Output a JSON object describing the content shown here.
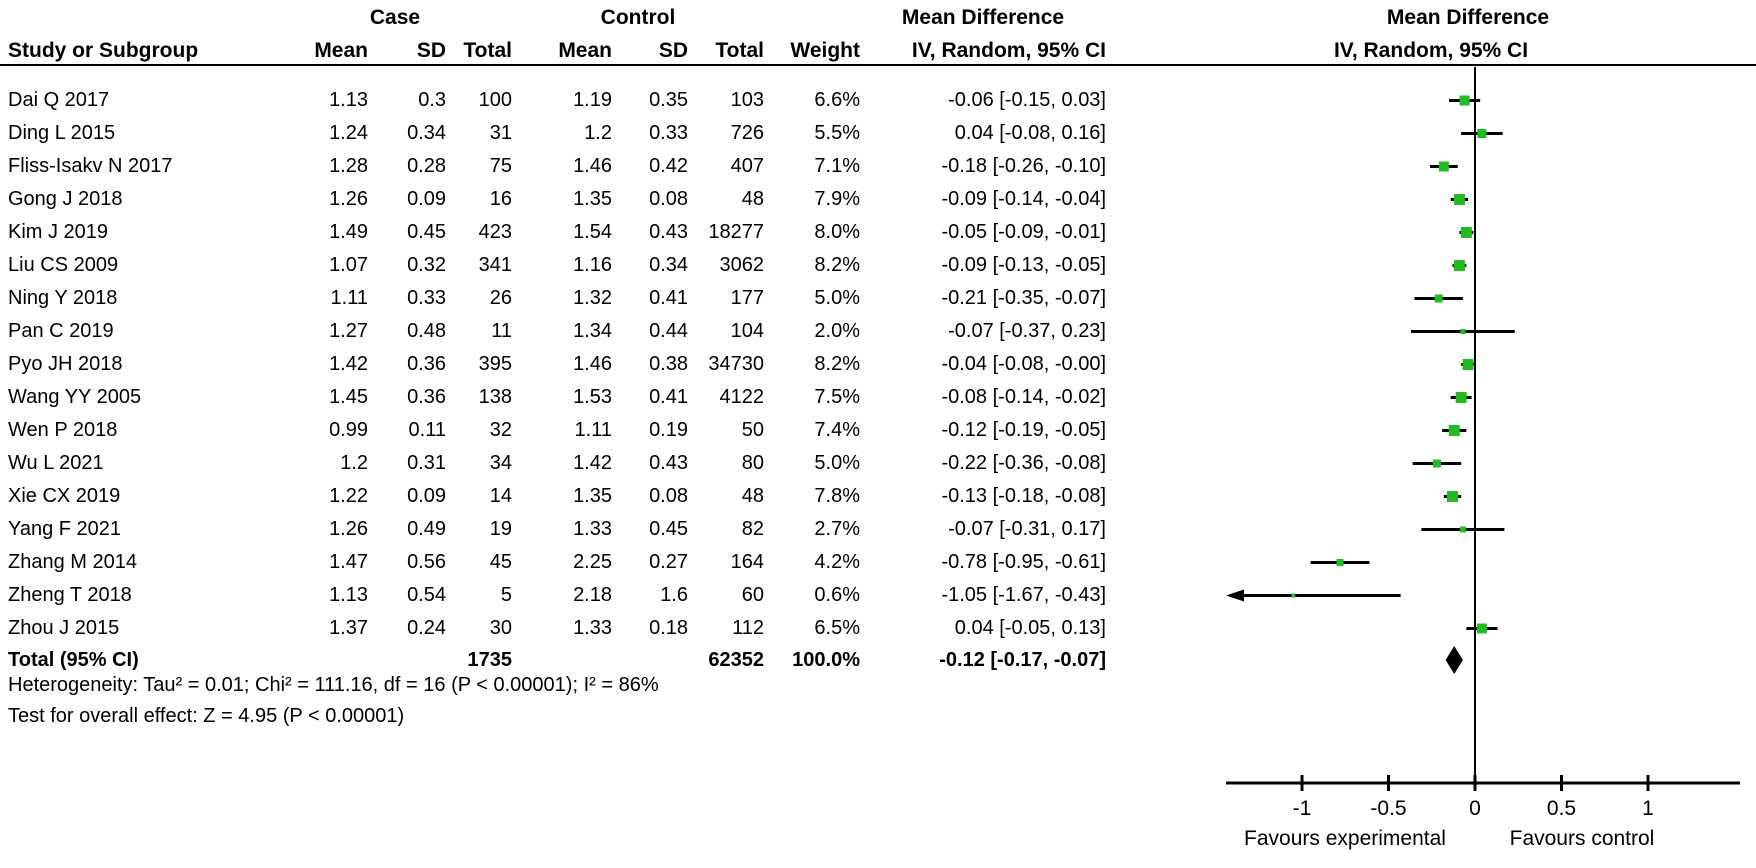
{
  "headers": {
    "group_case": "Case",
    "group_control": "Control",
    "group_md_text": "Mean Difference",
    "group_md_plot": "Mean Difference",
    "col_study": "Study or Subgroup",
    "col_mean": "Mean",
    "col_sd": "SD",
    "col_total": "Total",
    "col_weight": "Weight",
    "col_ci": "IV, Random, 95% CI"
  },
  "chart_data": {
    "type": "forest",
    "effect_measure": "Mean Difference",
    "model": "IV, Random, 95% CI",
    "studies": [
      {
        "name": "Dai Q 2017",
        "case_mean": "1.13",
        "case_sd": "0.3",
        "case_total": "100",
        "ctrl_mean": "1.19",
        "ctrl_sd": "0.35",
        "ctrl_total": "103",
        "weight": "6.6%",
        "ci_label": "-0.06 [-0.15, 0.03]",
        "md": -0.06,
        "lo": -0.15,
        "hi": 0.03
      },
      {
        "name": "Ding L 2015",
        "case_mean": "1.24",
        "case_sd": "0.34",
        "case_total": "31",
        "ctrl_mean": "1.2",
        "ctrl_sd": "0.33",
        "ctrl_total": "726",
        "weight": "5.5%",
        "ci_label": "0.04 [-0.08, 0.16]",
        "md": 0.04,
        "lo": -0.08,
        "hi": 0.16
      },
      {
        "name": "Fliss-Isakv N 2017",
        "case_mean": "1.28",
        "case_sd": "0.28",
        "case_total": "75",
        "ctrl_mean": "1.46",
        "ctrl_sd": "0.42",
        "ctrl_total": "407",
        "weight": "7.1%",
        "ci_label": "-0.18 [-0.26, -0.10]",
        "md": -0.18,
        "lo": -0.26,
        "hi": -0.1
      },
      {
        "name": "Gong J 2018",
        "case_mean": "1.26",
        "case_sd": "0.09",
        "case_total": "16",
        "ctrl_mean": "1.35",
        "ctrl_sd": "0.08",
        "ctrl_total": "48",
        "weight": "7.9%",
        "ci_label": "-0.09 [-0.14, -0.04]",
        "md": -0.09,
        "lo": -0.14,
        "hi": -0.04
      },
      {
        "name": "Kim J 2019",
        "case_mean": "1.49",
        "case_sd": "0.45",
        "case_total": "423",
        "ctrl_mean": "1.54",
        "ctrl_sd": "0.43",
        "ctrl_total": "18277",
        "weight": "8.0%",
        "ci_label": "-0.05 [-0.09, -0.01]",
        "md": -0.05,
        "lo": -0.09,
        "hi": -0.01
      },
      {
        "name": "Liu CS 2009",
        "case_mean": "1.07",
        "case_sd": "0.32",
        "case_total": "341",
        "ctrl_mean": "1.16",
        "ctrl_sd": "0.34",
        "ctrl_total": "3062",
        "weight": "8.2%",
        "ci_label": "-0.09 [-0.13, -0.05]",
        "md": -0.09,
        "lo": -0.13,
        "hi": -0.05
      },
      {
        "name": "Ning Y 2018",
        "case_mean": "1.11",
        "case_sd": "0.33",
        "case_total": "26",
        "ctrl_mean": "1.32",
        "ctrl_sd": "0.41",
        "ctrl_total": "177",
        "weight": "5.0%",
        "ci_label": "-0.21 [-0.35, -0.07]",
        "md": -0.21,
        "lo": -0.35,
        "hi": -0.07
      },
      {
        "name": "Pan C 2019",
        "case_mean": "1.27",
        "case_sd": "0.48",
        "case_total": "11",
        "ctrl_mean": "1.34",
        "ctrl_sd": "0.44",
        "ctrl_total": "104",
        "weight": "2.0%",
        "ci_label": "-0.07 [-0.37, 0.23]",
        "md": -0.07,
        "lo": -0.37,
        "hi": 0.23
      },
      {
        "name": "Pyo JH 2018",
        "case_mean": "1.42",
        "case_sd": "0.36",
        "case_total": "395",
        "ctrl_mean": "1.46",
        "ctrl_sd": "0.38",
        "ctrl_total": "34730",
        "weight": "8.2%",
        "ci_label": "-0.04 [-0.08, -0.00]",
        "md": -0.04,
        "lo": -0.08,
        "hi": 0.0
      },
      {
        "name": "Wang YY 2005",
        "case_mean": "1.45",
        "case_sd": "0.36",
        "case_total": "138",
        "ctrl_mean": "1.53",
        "ctrl_sd": "0.41",
        "ctrl_total": "4122",
        "weight": "7.5%",
        "ci_label": "-0.08 [-0.14, -0.02]",
        "md": -0.08,
        "lo": -0.14,
        "hi": -0.02
      },
      {
        "name": "Wen P 2018",
        "case_mean": "0.99",
        "case_sd": "0.11",
        "case_total": "32",
        "ctrl_mean": "1.11",
        "ctrl_sd": "0.19",
        "ctrl_total": "50",
        "weight": "7.4%",
        "ci_label": "-0.12 [-0.19, -0.05]",
        "md": -0.12,
        "lo": -0.19,
        "hi": -0.05
      },
      {
        "name": "Wu L 2021",
        "case_mean": "1.2",
        "case_sd": "0.31",
        "case_total": "34",
        "ctrl_mean": "1.42",
        "ctrl_sd": "0.43",
        "ctrl_total": "80",
        "weight": "5.0%",
        "ci_label": "-0.22 [-0.36, -0.08]",
        "md": -0.22,
        "lo": -0.36,
        "hi": -0.08
      },
      {
        "name": "Xie CX 2019",
        "case_mean": "1.22",
        "case_sd": "0.09",
        "case_total": "14",
        "ctrl_mean": "1.35",
        "ctrl_sd": "0.08",
        "ctrl_total": "48",
        "weight": "7.8%",
        "ci_label": "-0.13 [-0.18, -0.08]",
        "md": -0.13,
        "lo": -0.18,
        "hi": -0.08
      },
      {
        "name": "Yang F 2021",
        "case_mean": "1.26",
        "case_sd": "0.49",
        "case_total": "19",
        "ctrl_mean": "1.33",
        "ctrl_sd": "0.45",
        "ctrl_total": "82",
        "weight": "2.7%",
        "ci_label": "-0.07 [-0.31, 0.17]",
        "md": -0.07,
        "lo": -0.31,
        "hi": 0.17
      },
      {
        "name": "Zhang M 2014",
        "case_mean": "1.47",
        "case_sd": "0.56",
        "case_total": "45",
        "ctrl_mean": "2.25",
        "ctrl_sd": "0.27",
        "ctrl_total": "164",
        "weight": "4.2%",
        "ci_label": "-0.78 [-0.95, -0.61]",
        "md": -0.78,
        "lo": -0.95,
        "hi": -0.61
      },
      {
        "name": "Zheng T 2018",
        "case_mean": "1.13",
        "case_sd": "0.54",
        "case_total": "5",
        "ctrl_mean": "2.18",
        "ctrl_sd": "1.6",
        "ctrl_total": "60",
        "weight": "0.6%",
        "ci_label": "-1.05 [-1.67, -0.43]",
        "md": -1.05,
        "lo": -1.67,
        "hi": -0.43
      },
      {
        "name": "Zhou J 2015",
        "case_mean": "1.37",
        "case_sd": "0.24",
        "case_total": "30",
        "ctrl_mean": "1.33",
        "ctrl_sd": "0.18",
        "ctrl_total": "112",
        "weight": "6.5%",
        "ci_label": "0.04 [-0.05, 0.13]",
        "md": 0.04,
        "lo": -0.05,
        "hi": 0.13
      }
    ],
    "total": {
      "label": "Total (95% CI)",
      "case_total": "1735",
      "ctrl_total": "62352",
      "weight": "100.0%",
      "ci_label": "-0.12 [-0.17, -0.07]",
      "md": -0.12,
      "lo": -0.17,
      "hi": -0.07
    },
    "heterogeneity": "Heterogeneity: Tau² = 0.01; Chi² = 111.16, df = 16 (P < 0.00001); I² = 86%",
    "overall_effect": "Test for overall effect: Z = 4.95 (P < 0.00001)",
    "axis": {
      "tick_labels": [
        "-1",
        "-0.5",
        "0",
        "0.5",
        "1"
      ],
      "tick_values": [
        -1,
        -0.5,
        0,
        0.5,
        1
      ],
      "x_range": [
        -1.44,
        1.53
      ],
      "favours_left": "Favours experimental",
      "favours_right": "Favours control"
    },
    "colors": {
      "marker_green": "#22bb22",
      "line_black": "#000000"
    }
  }
}
